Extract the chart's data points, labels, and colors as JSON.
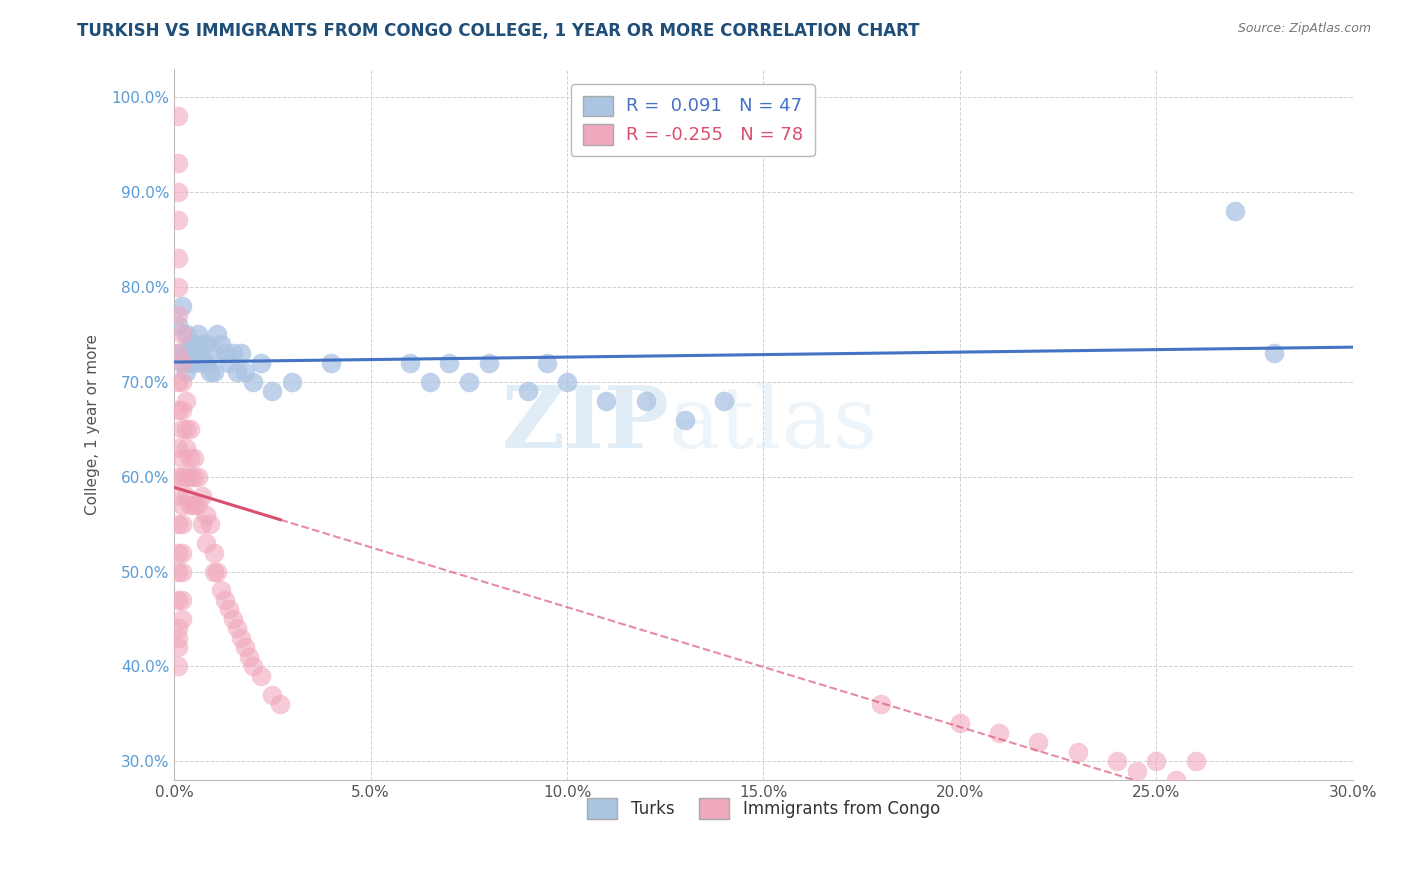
{
  "title": "TURKISH VS IMMIGRANTS FROM CONGO COLLEGE, 1 YEAR OR MORE CORRELATION CHART",
  "source": "Source: ZipAtlas.com",
  "ylabel": "College, 1 year or more",
  "xlabel": "",
  "xlim": [
    0.0,
    0.3
  ],
  "ylim": [
    0.28,
    1.03
  ],
  "xtick_vals": [
    0.0,
    0.05,
    0.1,
    0.15,
    0.2,
    0.25,
    0.3
  ],
  "xtick_labels": [
    "0.0%",
    "5.0%",
    "10.0%",
    "15.0%",
    "20.0%",
    "25.0%",
    "30.0%"
  ],
  "ytick_vals": [
    0.3,
    0.4,
    0.5,
    0.6,
    0.7,
    0.8,
    0.9,
    1.0
  ],
  "ytick_labels": [
    "30.0%",
    "40.0%",
    "50.0%",
    "60.0%",
    "70.0%",
    "80.0%",
    "90.0%",
    "100.0%"
  ],
  "turks_R": 0.091,
  "turks_N": 47,
  "congo_R": -0.255,
  "congo_N": 78,
  "turks_color": "#aac4e2",
  "congo_color": "#f0a8bc",
  "turks_line_color": "#4472c4",
  "congo_line_color": "#d94f6e",
  "watermark_zip": "ZIP",
  "watermark_atlas": "atlas",
  "legend_turks_label": "Turks",
  "legend_congo_label": "Immigrants from Congo",
  "turks_scatter_x": [
    0.001,
    0.001,
    0.002,
    0.002,
    0.003,
    0.003,
    0.003,
    0.004,
    0.004,
    0.005,
    0.005,
    0.006,
    0.006,
    0.007,
    0.007,
    0.008,
    0.008,
    0.009,
    0.01,
    0.01,
    0.011,
    0.012,
    0.013,
    0.014,
    0.015,
    0.016,
    0.017,
    0.018,
    0.02,
    0.022,
    0.025,
    0.03,
    0.04,
    0.06,
    0.065,
    0.07,
    0.075,
    0.08,
    0.09,
    0.095,
    0.1,
    0.11,
    0.12,
    0.13,
    0.14,
    0.27,
    0.28
  ],
  "turks_scatter_y": [
    0.76,
    0.73,
    0.78,
    0.72,
    0.75,
    0.73,
    0.71,
    0.74,
    0.72,
    0.74,
    0.72,
    0.75,
    0.73,
    0.74,
    0.72,
    0.74,
    0.72,
    0.71,
    0.73,
    0.71,
    0.75,
    0.74,
    0.73,
    0.72,
    0.73,
    0.71,
    0.73,
    0.71,
    0.7,
    0.72,
    0.69,
    0.7,
    0.72,
    0.72,
    0.7,
    0.72,
    0.7,
    0.72,
    0.69,
    0.72,
    0.7,
    0.68,
    0.68,
    0.66,
    0.68,
    0.88,
    0.73
  ],
  "congo_scatter_x": [
    0.001,
    0.001,
    0.001,
    0.001,
    0.001,
    0.001,
    0.001,
    0.001,
    0.001,
    0.001,
    0.001,
    0.001,
    0.001,
    0.001,
    0.001,
    0.001,
    0.001,
    0.001,
    0.001,
    0.001,
    0.001,
    0.002,
    0.002,
    0.002,
    0.002,
    0.002,
    0.002,
    0.002,
    0.002,
    0.002,
    0.002,
    0.002,
    0.002,
    0.002,
    0.003,
    0.003,
    0.003,
    0.003,
    0.003,
    0.004,
    0.004,
    0.004,
    0.004,
    0.005,
    0.005,
    0.005,
    0.006,
    0.006,
    0.007,
    0.007,
    0.008,
    0.008,
    0.009,
    0.01,
    0.01,
    0.011,
    0.012,
    0.013,
    0.014,
    0.015,
    0.016,
    0.017,
    0.018,
    0.019,
    0.02,
    0.022,
    0.025,
    0.027,
    0.18,
    0.2,
    0.21,
    0.22,
    0.23,
    0.24,
    0.245,
    0.25,
    0.255,
    0.26
  ],
  "congo_scatter_y": [
    0.98,
    0.93,
    0.9,
    0.87,
    0.83,
    0.8,
    0.77,
    0.73,
    0.7,
    0.67,
    0.63,
    0.6,
    0.58,
    0.55,
    0.52,
    0.5,
    0.47,
    0.44,
    0.43,
    0.42,
    0.4,
    0.75,
    0.72,
    0.7,
    0.67,
    0.65,
    0.62,
    0.6,
    0.57,
    0.55,
    0.52,
    0.5,
    0.47,
    0.45,
    0.68,
    0.65,
    0.63,
    0.6,
    0.58,
    0.65,
    0.62,
    0.6,
    0.57,
    0.62,
    0.6,
    0.57,
    0.6,
    0.57,
    0.58,
    0.55,
    0.56,
    0.53,
    0.55,
    0.52,
    0.5,
    0.5,
    0.48,
    0.47,
    0.46,
    0.45,
    0.44,
    0.43,
    0.42,
    0.41,
    0.4,
    0.39,
    0.37,
    0.36,
    0.36,
    0.34,
    0.33,
    0.32,
    0.31,
    0.3,
    0.29,
    0.3,
    0.28,
    0.3
  ]
}
